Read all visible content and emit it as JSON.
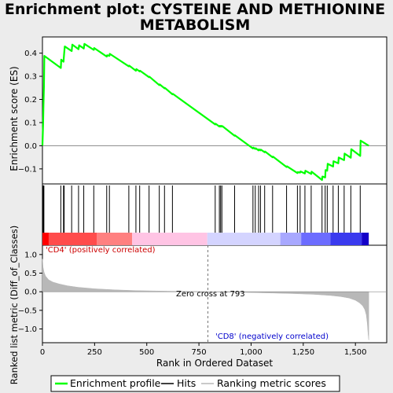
{
  "chart_data": {
    "type": "line",
    "title_line1": "Enrichment plot: CYSTEINE AND METHIONINE",
    "title_line2": "METABOLISM",
    "es_panel": {
      "ylabel": "Enrichment score (ES)",
      "ylim": [
        -0.165,
        0.47
      ],
      "yticks": [
        -0.1,
        0.0,
        0.1,
        0.2,
        0.3,
        0.4
      ],
      "ytick_labels": [
        "−0.1",
        "0.0",
        "0.1",
        "0.2",
        "0.3",
        "0.4"
      ],
      "series_name": "Enrichment profile",
      "color": "#00ff00",
      "x": [
        0,
        3,
        5,
        7,
        9,
        88,
        90,
        101,
        104,
        107,
        140,
        143,
        173,
        176,
        198,
        201,
        246,
        248,
        308,
        310,
        321,
        323,
        414,
        416,
        448,
        450,
        466,
        468,
        511,
        513,
        560,
        562,
        585,
        587,
        623,
        625,
        828,
        830,
        848,
        850,
        854,
        856,
        860,
        862,
        921,
        923,
        1009,
        1011,
        1020,
        1022,
        1036,
        1038,
        1045,
        1047,
        1065,
        1067,
        1103,
        1105,
        1170,
        1172,
        1222,
        1224,
        1235,
        1237,
        1258,
        1260,
        1288,
        1290,
        1340,
        1342,
        1355,
        1357,
        1365,
        1367,
        1393,
        1395,
        1418,
        1420,
        1446,
        1448,
        1478,
        1480,
        1523,
        1525,
        1564
      ],
      "y": [
        0.0,
        0.09,
        0.175,
        0.255,
        0.388,
        0.336,
        0.372,
        0.363,
        0.398,
        0.429,
        0.409,
        0.437,
        0.417,
        0.434,
        0.42,
        0.44,
        0.414,
        0.422,
        0.385,
        0.391,
        0.388,
        0.397,
        0.343,
        0.346,
        0.324,
        0.331,
        0.321,
        0.324,
        0.296,
        0.298,
        0.262,
        0.265,
        0.248,
        0.25,
        0.222,
        0.224,
        0.092,
        0.095,
        0.083,
        0.086,
        0.083,
        0.086,
        0.083,
        0.085,
        0.043,
        0.045,
        -0.012,
        -0.008,
        -0.014,
        -0.011,
        -0.02,
        -0.016,
        -0.02,
        -0.017,
        -0.028,
        -0.025,
        -0.05,
        -0.047,
        -0.092,
        -0.089,
        -0.118,
        -0.114,
        -0.116,
        -0.111,
        -0.12,
        -0.108,
        -0.122,
        -0.112,
        -0.148,
        -0.133,
        -0.137,
        -0.105,
        -0.108,
        -0.078,
        -0.09,
        -0.067,
        -0.076,
        -0.051,
        -0.062,
        -0.034,
        -0.052,
        -0.015,
        -0.044,
        0.022,
        0.0
      ]
    },
    "hits": {
      "series_name": "Hits",
      "x": [
        3,
        5,
        7,
        88,
        101,
        104,
        140,
        173,
        198,
        246,
        308,
        321,
        414,
        448,
        466,
        511,
        560,
        585,
        623,
        828,
        848,
        854,
        860,
        921,
        1009,
        1020,
        1036,
        1045,
        1065,
        1103,
        1170,
        1222,
        1235,
        1258,
        1288,
        1340,
        1355,
        1365,
        1393,
        1418,
        1446,
        1478,
        1523
      ]
    },
    "heatmap_bar": {
      "segments": [
        {
          "x0": 0,
          "x1": 30,
          "color": "#ff0000"
        },
        {
          "x0": 30,
          "x1": 260,
          "color": "#ff4c4c"
        },
        {
          "x0": 260,
          "x1": 430,
          "color": "#ff8080"
        },
        {
          "x0": 430,
          "x1": 790,
          "color": "#ffc4e4"
        },
        {
          "x0": 790,
          "x1": 1140,
          "color": "#d4d4ff"
        },
        {
          "x0": 1140,
          "x1": 1240,
          "color": "#a8a8ff"
        },
        {
          "x0": 1240,
          "x1": 1380,
          "color": "#6c6cff"
        },
        {
          "x0": 1380,
          "x1": 1530,
          "color": "#3a3aee"
        },
        {
          "x0": 1530,
          "x1": 1564,
          "color": "#1400c8"
        }
      ]
    },
    "metric_panel": {
      "ylabel": "Ranked list metric (Diff_of_Classes)",
      "ylim": [
        -1.37,
        1.25
      ],
      "yticks": [
        -1.0,
        -0.5,
        0.0,
        0.5,
        1.0
      ],
      "ytick_labels": [
        "−1.0",
        "−0.5",
        "0.0",
        "0.5",
        "1.0"
      ],
      "series_name": "Ranking metric scores",
      "fill": "#b8b8b8",
      "x": [
        0,
        3,
        8,
        15,
        30,
        50,
        80,
        120,
        170,
        250,
        350,
        450,
        600,
        793,
        950,
        1100,
        1200,
        1300,
        1380,
        1430,
        1470,
        1500,
        1520,
        1535,
        1545,
        1552,
        1557,
        1561,
        1564
      ],
      "y": [
        0.88,
        0.66,
        0.52,
        0.42,
        0.32,
        0.26,
        0.21,
        0.16,
        0.12,
        0.08,
        0.05,
        0.03,
        0.015,
        0.0,
        -0.015,
        -0.035,
        -0.05,
        -0.07,
        -0.1,
        -0.13,
        -0.17,
        -0.23,
        -0.3,
        -0.38,
        -0.48,
        -0.62,
        -0.85,
        -1.15,
        -1.3
      ]
    },
    "xaxis": {
      "xlabel": "Rank in Ordered Dataset",
      "xlim": [
        0,
        1650
      ],
      "xticks": [
        0,
        250,
        500,
        750,
        1000,
        1250,
        1500
      ],
      "xtick_labels": [
        "0",
        "250",
        "500",
        "750",
        "1,000",
        "1,250",
        "1,500"
      ]
    },
    "zero_cross": {
      "rank": 793,
      "label": "Zero cross at 793"
    },
    "pos_label": "'CD4' (positively correlated)",
    "neg_label": "'CD8' (negatively correlated)",
    "legend": {
      "placement": "bottom",
      "items": [
        {
          "label": "Enrichment profile",
          "color": "#00ff00"
        },
        {
          "label": "Hits",
          "color": "#000000"
        },
        {
          "label": "Ranking metric scores",
          "color": "#b8b8b8"
        }
      ]
    }
  }
}
